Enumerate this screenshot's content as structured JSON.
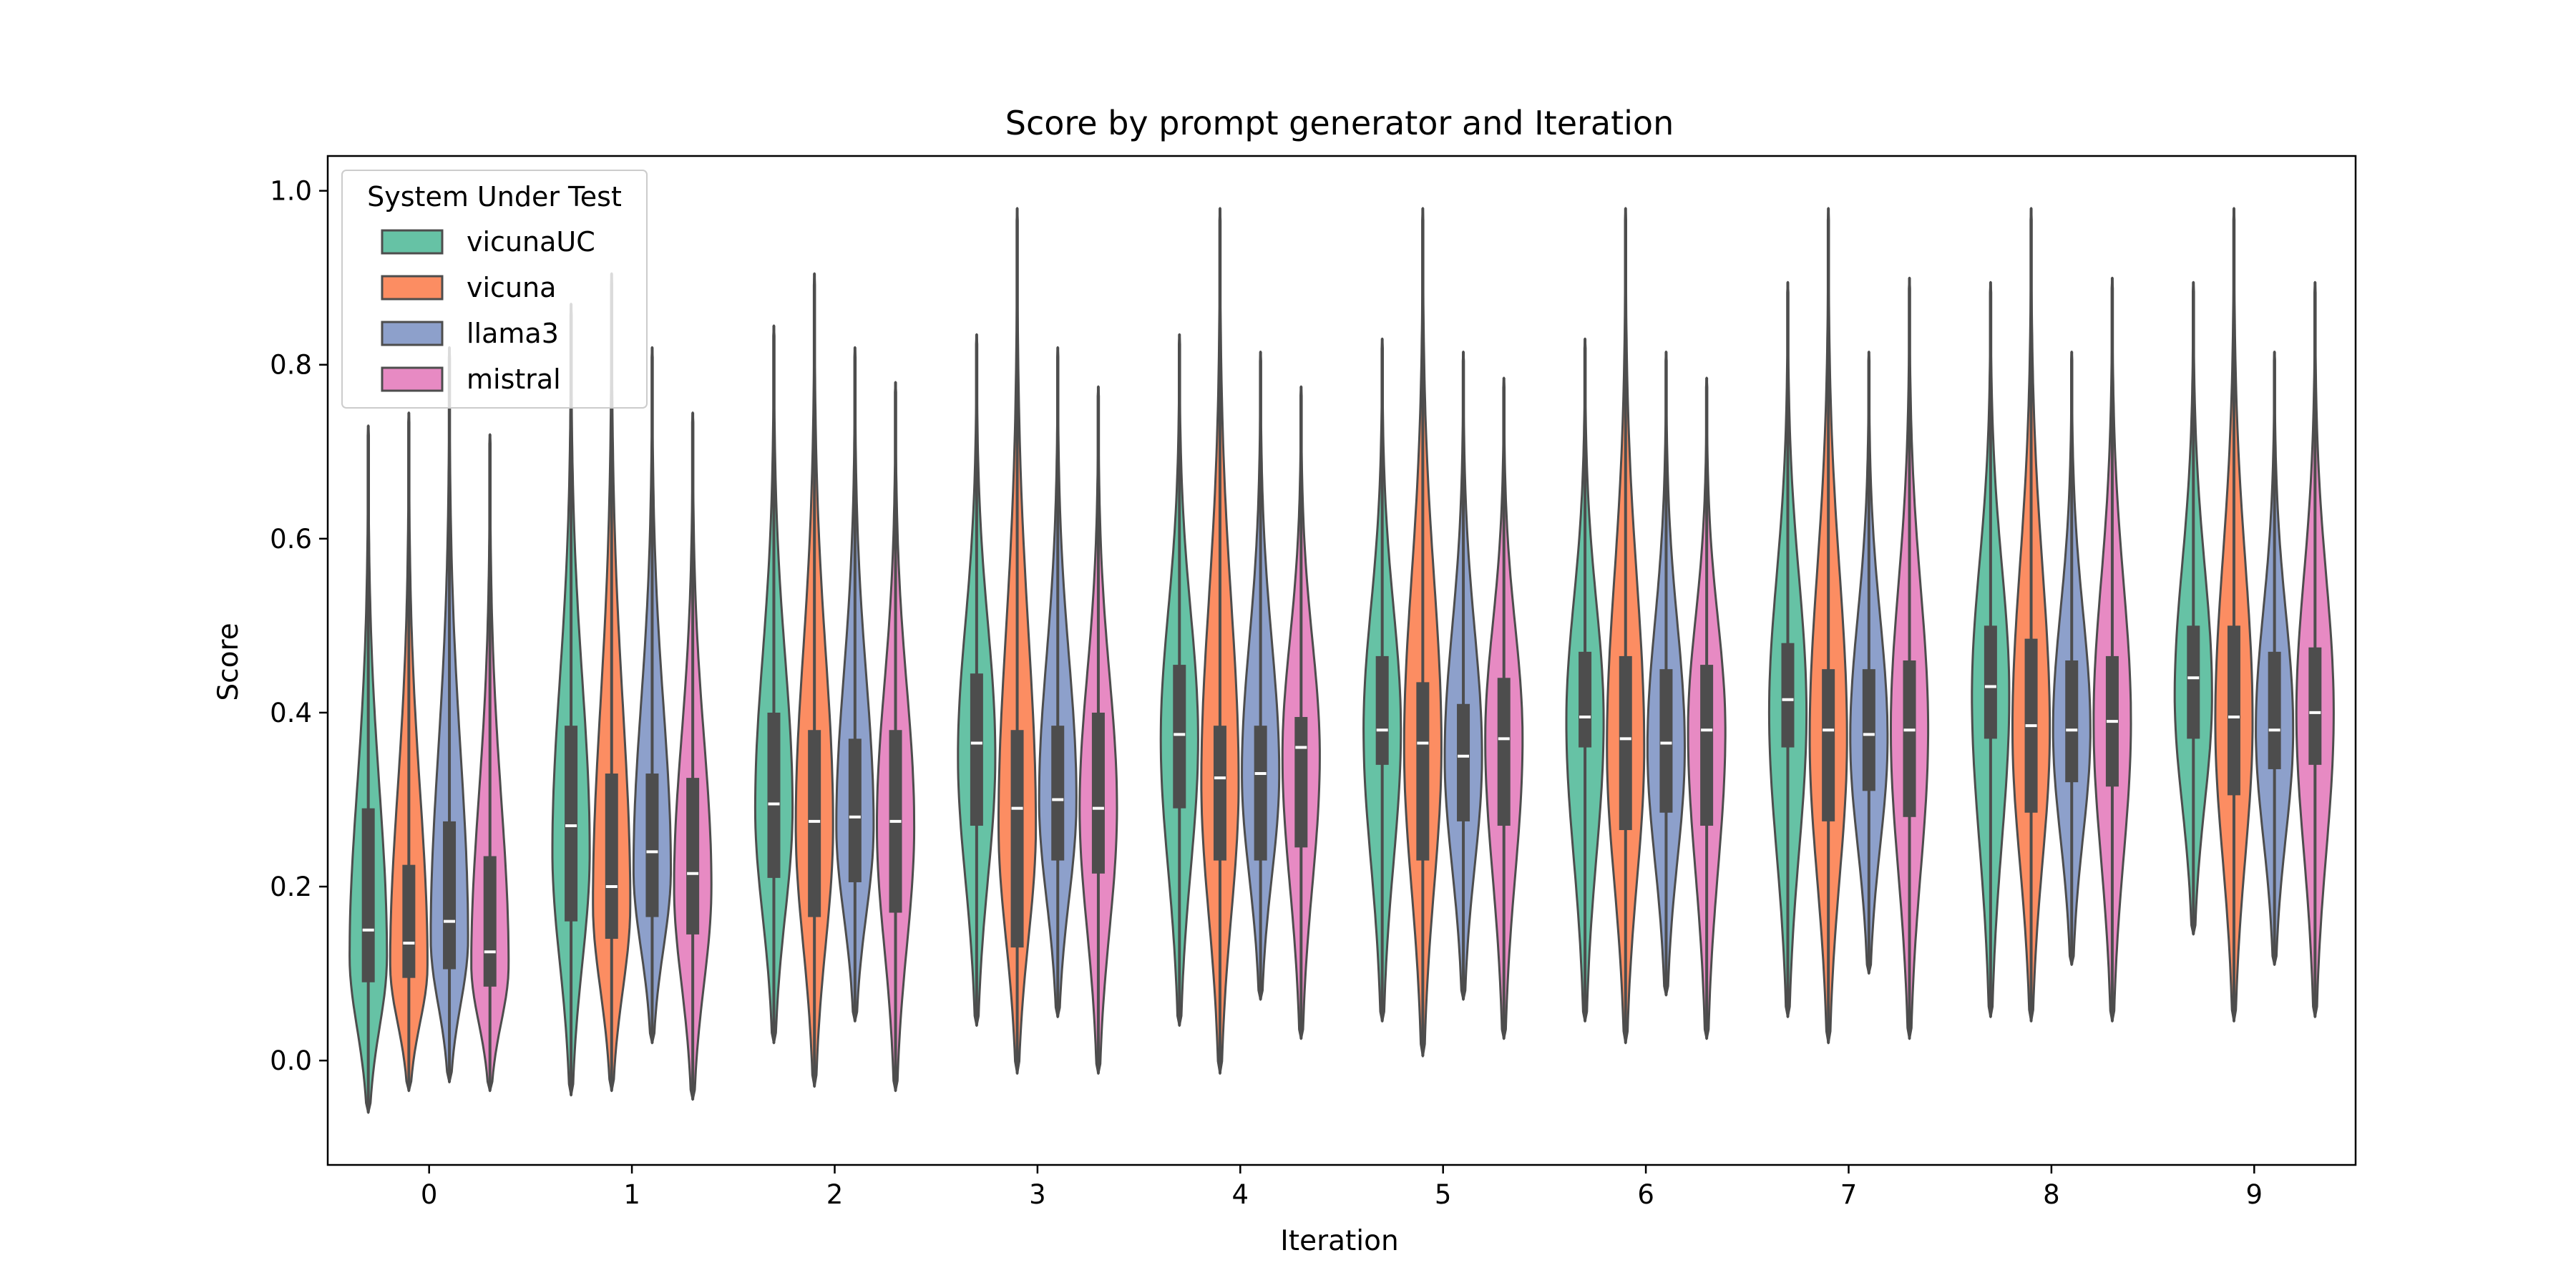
{
  "chart_data": {
    "type": "violin",
    "title": "Score by prompt generator and Iteration",
    "xlabel": "Iteration",
    "ylabel": "Score",
    "categories": [
      "0",
      "1",
      "2",
      "3",
      "4",
      "5",
      "6",
      "7",
      "8",
      "9"
    ],
    "ylim": [
      -0.12,
      1.04
    ],
    "yticks": [
      0.0,
      0.2,
      0.4,
      0.6,
      0.8,
      1.0
    ],
    "ytick_labels": [
      "0.0",
      "0.2",
      "0.4",
      "0.6",
      "0.8",
      "1.0"
    ],
    "legend": {
      "title": "System Under Test",
      "position": "top-left"
    },
    "series": [
      {
        "name": "vicunaUC",
        "color": "#66c2a5",
        "medians": [
          0.15,
          0.27,
          0.295,
          0.365,
          0.375,
          0.38,
          0.395,
          0.415,
          0.43,
          0.44
        ],
        "q1": [
          0.09,
          0.16,
          0.21,
          0.27,
          0.29,
          0.34,
          0.36,
          0.36,
          0.37,
          0.37
        ],
        "q3": [
          0.29,
          0.385,
          0.4,
          0.445,
          0.455,
          0.465,
          0.47,
          0.48,
          0.5,
          0.5
        ],
        "min": [
          -0.06,
          -0.04,
          0.02,
          0.04,
          0.04,
          0.045,
          0.045,
          0.05,
          0.05,
          0.145
        ],
        "max": [
          0.73,
          0.87,
          0.845,
          0.835,
          0.835,
          0.83,
          0.83,
          0.895,
          0.895,
          0.895
        ],
        "mode": [
          0.12,
          0.24,
          0.29,
          0.35,
          0.37,
          0.38,
          0.39,
          0.4,
          0.42,
          0.42
        ]
      },
      {
        "name": "vicuna",
        "color": "#fc8d62",
        "medians": [
          0.135,
          0.2,
          0.275,
          0.29,
          0.325,
          0.365,
          0.37,
          0.38,
          0.385,
          0.395
        ],
        "q1": [
          0.095,
          0.14,
          0.165,
          0.13,
          0.23,
          0.23,
          0.265,
          0.275,
          0.285,
          0.305
        ],
        "q3": [
          0.225,
          0.33,
          0.38,
          0.38,
          0.385,
          0.435,
          0.465,
          0.45,
          0.485,
          0.5
        ],
        "min": [
          -0.035,
          -0.035,
          -0.03,
          -0.015,
          -0.015,
          0.005,
          0.02,
          0.02,
          0.045,
          0.045
        ],
        "max": [
          0.745,
          0.905,
          0.905,
          0.98,
          0.98,
          0.98,
          0.98,
          0.98,
          0.98,
          0.98
        ],
        "mode": [
          0.11,
          0.18,
          0.27,
          0.27,
          0.32,
          0.36,
          0.36,
          0.37,
          0.38,
          0.39
        ]
      },
      {
        "name": "llama3",
        "color": "#8da0cb",
        "medians": [
          0.16,
          0.24,
          0.28,
          0.3,
          0.33,
          0.35,
          0.365,
          0.375,
          0.38,
          0.38
        ],
        "q1": [
          0.105,
          0.165,
          0.205,
          0.23,
          0.23,
          0.275,
          0.285,
          0.31,
          0.32,
          0.335
        ],
        "q3": [
          0.275,
          0.33,
          0.37,
          0.385,
          0.385,
          0.41,
          0.45,
          0.45,
          0.46,
          0.47
        ],
        "min": [
          -0.025,
          0.02,
          0.045,
          0.05,
          0.07,
          0.07,
          0.075,
          0.1,
          0.11,
          0.11
        ],
        "max": [
          0.82,
          0.82,
          0.82,
          0.82,
          0.815,
          0.815,
          0.815,
          0.815,
          0.815,
          0.815
        ],
        "mode": [
          0.14,
          0.22,
          0.27,
          0.3,
          0.33,
          0.35,
          0.36,
          0.37,
          0.38,
          0.38
        ]
      },
      {
        "name": "mistral",
        "color": "#e78ac3",
        "medians": [
          0.125,
          0.215,
          0.275,
          0.29,
          0.36,
          0.37,
          0.38,
          0.38,
          0.39,
          0.4
        ],
        "q1": [
          0.085,
          0.145,
          0.17,
          0.215,
          0.245,
          0.27,
          0.27,
          0.28,
          0.315,
          0.34
        ],
        "q3": [
          0.235,
          0.325,
          0.38,
          0.4,
          0.395,
          0.44,
          0.455,
          0.46,
          0.465,
          0.475
        ],
        "min": [
          -0.035,
          -0.045,
          -0.035,
          -0.015,
          0.025,
          0.025,
          0.025,
          0.025,
          0.045,
          0.05
        ],
        "max": [
          0.72,
          0.745,
          0.78,
          0.775,
          0.775,
          0.785,
          0.785,
          0.9,
          0.9,
          0.895
        ],
        "mode": [
          0.11,
          0.2,
          0.27,
          0.29,
          0.35,
          0.37,
          0.38,
          0.38,
          0.39,
          0.4
        ]
      }
    ]
  }
}
